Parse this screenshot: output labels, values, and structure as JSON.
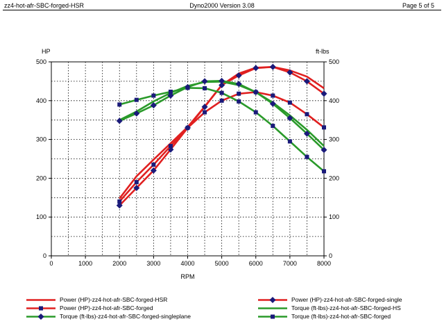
{
  "header": {
    "left": "zz4-hot-afr-SBC-forged-HSR",
    "center": "Dyno2000  Version 3.08",
    "right": "Page 5 of 5"
  },
  "chart_data": {
    "type": "line",
    "title": "",
    "xlabel": "RPM",
    "ylabel_left": "HP",
    "ylabel_right": "ft-lbs",
    "xlim": [
      0,
      8000
    ],
    "ylim": [
      0,
      500
    ],
    "x_ticks": [
      0,
      1000,
      2000,
      3000,
      4000,
      5000,
      6000,
      7000,
      8000
    ],
    "y_ticks": [
      0,
      100,
      200,
      300,
      400,
      500
    ],
    "grid": true,
    "legend_position": "bottom",
    "series": [
      {
        "name": "Power (HP)-zz4-hot-afr-SBC-forged-HSR",
        "color": "#e02020",
        "marker": "none",
        "x": [
          2000,
          2500,
          3000,
          3500,
          4000,
          4500,
          5000,
          5500,
          6000,
          6500,
          7000,
          7500,
          8000
        ],
        "y": [
          148,
          205,
          248,
          290,
          332,
          385,
          440,
          470,
          485,
          487,
          478,
          462,
          432
        ]
      },
      {
        "name": "Power (HP)-zz4-hot-afr-SBC-forged-single",
        "color": "#e02020",
        "marker": "diamond",
        "marker_color": "#1a1a7a",
        "x": [
          2000,
          2500,
          3000,
          3500,
          4000,
          4500,
          5000,
          5500,
          6000,
          6500,
          7000,
          7500,
          8000
        ],
        "y": [
          130,
          175,
          220,
          274,
          330,
          384,
          440,
          465,
          484,
          487,
          473,
          450,
          418
        ]
      },
      {
        "name": "Power (HP)-zz4-hot-afr-SBC-forged",
        "color": "#e02020",
        "marker": "square",
        "marker_color": "#1a1a7a",
        "x": [
          2000,
          2500,
          3000,
          3500,
          4000,
          4500,
          5000,
          5500,
          6000,
          6500,
          7000,
          7500,
          8000
        ],
        "y": [
          140,
          190,
          235,
          283,
          330,
          370,
          400,
          418,
          422,
          413,
          395,
          365,
          331
        ]
      },
      {
        "name": "Torque (ft-lbs)-zz4-hot-afr-SBC-forged-HS",
        "color": "#2a9a2a",
        "marker": "none",
        "x": [
          2000,
          2500,
          3000,
          3500,
          4000,
          4500,
          5000,
          5500,
          6000,
          6500,
          7000,
          7500,
          8000
        ],
        "y": [
          350,
          372,
          398,
          420,
          438,
          448,
          449,
          440,
          422,
          395,
          362,
          325,
          283
        ]
      },
      {
        "name": "Torque (ft-lbs)-zz4-hot-afr-SBC-forged-singleplane",
        "color": "#2a9a2a",
        "marker": "diamond",
        "marker_color": "#1a1a7a",
        "x": [
          2000,
          2500,
          3000,
          3500,
          4000,
          4500,
          5000,
          5500,
          6000,
          6500,
          7000,
          7500,
          8000
        ],
        "y": [
          348,
          367,
          388,
          413,
          435,
          450,
          451,
          443,
          422,
          392,
          355,
          315,
          273
        ]
      },
      {
        "name": "Torque (ft-lbs)-zz4-hot-afr-SBC-forged",
        "color": "#2a9a2a",
        "marker": "square",
        "marker_color": "#1a1a7a",
        "x": [
          2000,
          2500,
          3000,
          3500,
          4000,
          4500,
          5000,
          5500,
          6000,
          6500,
          7000,
          7500,
          8000
        ],
        "y": [
          390,
          402,
          413,
          423,
          433,
          432,
          420,
          398,
          370,
          335,
          295,
          255,
          218
        ]
      }
    ]
  },
  "legend": {
    "items": [
      {
        "label": "Power (HP)-zz4-hot-afr-SBC-forged-HSR"
      },
      {
        "label": "Power (HP)-zz4-hot-afr-SBC-forged"
      },
      {
        "label": "Torque (ft-lbs)-zz4-hot-afr-SBC-forged-singleplane"
      },
      {
        "label": "Power (HP)-zz4-hot-afr-SBC-forged-single"
      },
      {
        "label": "Torque (ft-lbs)-zz4-hot-afr-SBC-forged-HS"
      },
      {
        "label": "Torque (ft-lbs)-zz4-hot-afr-SBC-forged"
      }
    ]
  }
}
